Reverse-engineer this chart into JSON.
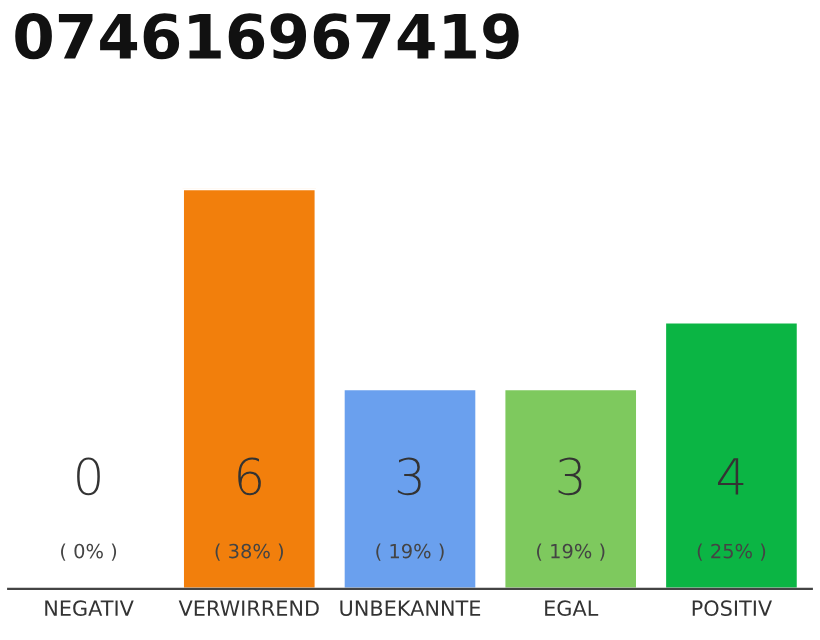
{
  "chart_data": {
    "type": "bar",
    "title": "074616967419",
    "categories": [
      "NEGATIV",
      "VERWIRREND",
      "UNBEKANNTE",
      "EGAL",
      "POSITIV"
    ],
    "values": [
      0,
      6,
      3,
      3,
      4
    ],
    "colors": [
      null,
      "#f27f0c",
      "#6aa0ee",
      "#7ec95e",
      "#0bb544"
    ],
    "value_labels": [
      "0\n( 0% )",
      "6\n( 38% )",
      "3\n( 19% )",
      "3\n( 19% )",
      "4\n( 25% )"
    ],
    "grid": false,
    "legend": false
  }
}
